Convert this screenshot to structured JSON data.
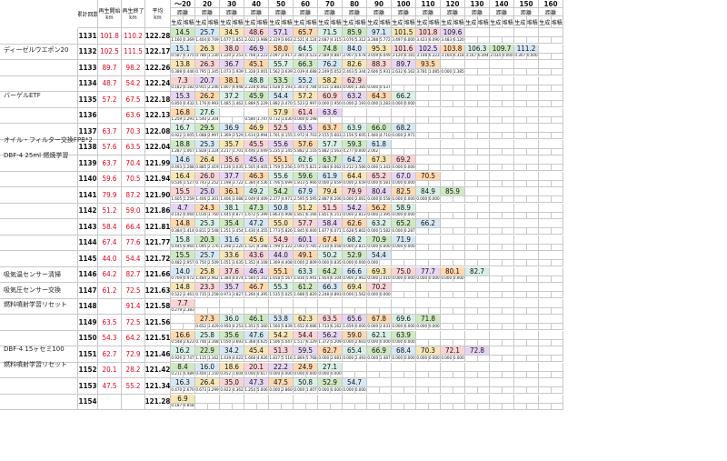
{
  "header": {
    "col_labels": [
      "累計回数",
      "再生開始",
      "再生終了",
      "平均"
    ],
    "col_units": [
      "",
      "km",
      "km",
      "km"
    ],
    "bands": [
      "〜20",
      "20",
      "30",
      "40",
      "50",
      "60",
      "70",
      "80",
      "90",
      "100",
      "110",
      "120",
      "130",
      "140",
      "150",
      "160"
    ],
    "band_sublabel": "距離",
    "sub_gen": "生成",
    "sub_acc": "堆積"
  },
  "notes": [
    {
      "row": 1,
      "text": "ディーゼルウエポン20"
    },
    {
      "row": 4,
      "text": "バーゲルETF"
    },
    {
      "row": 7,
      "text": "オイル・フィルター交換FPB*2"
    },
    {
      "row": 8,
      "text": "DBF-4  25ml 燃焼学習"
    },
    {
      "row": 16,
      "text": "吸気温センサー清掃"
    },
    {
      "row": 17,
      "text": "吸気圧センサー交換"
    },
    {
      "row": 18,
      "text": "燃料噴射学習リセット"
    },
    {
      "row": 21,
      "text": "DBF-4  15ヶセミ100"
    },
    {
      "row": 22,
      "text": "燃料噴射学習リセット"
    }
  ],
  "rows": [
    {
      "id": "1131",
      "s": "101.8",
      "e": "110.2",
      "avg": "122.28",
      "top": [
        "14.5",
        "25.7",
        "34.5",
        "48.6",
        "57.1",
        "65.7",
        "71.5",
        "85.9",
        "97.1",
        "101.5",
        "101.8",
        "109.6"
      ],
      "bot": [
        "1.160",
        "0.369",
        "1.404",
        "0.749",
        "1.677",
        "1.851",
        "2.022",
        "3.988",
        "2.319",
        "3.663",
        "2.521",
        "4.124",
        "2.687",
        "4.315",
        "3.076",
        "5.312",
        "3.288",
        "5.772",
        "3.497",
        "6.000",
        "3.423",
        "6.090",
        "3.483",
        "6.120"
      ]
    },
    {
      "id": "1132",
      "s": "102.5",
      "e": "111.5",
      "avg": "122.17",
      "top": [
        "15.1",
        "26.3",
        "38.0",
        "46.9",
        "58.0",
        "64.5",
        "74.8",
        "84.0",
        "95.3",
        "101.6",
        "102.5",
        "103.8",
        "106.3",
        "109.7",
        "111.2"
      ],
      "bot": [
        "0.587",
        "0.375",
        "0.786",
        "1.130",
        "1.220",
        "2.253",
        "1.768",
        "3.223",
        "2.097",
        "3.917",
        "2.385",
        "4.523",
        "2.589",
        "4.887",
        "2.907",
        "5.678",
        "3.059",
        "6.049",
        "3.120",
        "6.165",
        "3.148",
        "6.223",
        "3.164",
        "6.318",
        "3.167",
        "6.394",
        "2.034",
        "0.000",
        "0.307",
        "0.000"
      ]
    },
    {
      "id": "1133",
      "s": "89.7",
      "e": "98.2",
      "avg": "122.26",
      "top": [
        "13.8",
        "26.3",
        "36.7",
        "45.1",
        "55.7",
        "66.3",
        "76.2",
        "82.6",
        "88.3",
        "89.7",
        "93.5"
      ],
      "bot": [
        "0.388",
        "0.446",
        "0.795",
        "1.345",
        "1.073",
        "1.939",
        "1.328",
        "3.001",
        "1.562",
        "3.639",
        "2.039",
        "4.688",
        "2.249",
        "5.052",
        "2.403",
        "5.344",
        "2.606",
        "5.931",
        "2.632",
        "6.162",
        "3.781",
        "1.085",
        "0.000",
        "1.385"
      ]
    },
    {
      "id": "1134",
      "s": "48.7",
      "e": "54.2",
      "avg": "122.24",
      "top": [
        "7.3",
        "20.7",
        "38.1",
        "48.8",
        "53.5",
        "55.2",
        "58.2",
        "62.9"
      ],
      "bot": [
        "0.182",
        "0.182",
        "0.955",
        "2.246",
        "1.807",
        "4.948",
        "2.228",
        "6.062",
        "1.628",
        "5.193",
        "1.303",
        "4.784",
        "0.511",
        "3.883",
        "0.000",
        "1.385",
        "0.000",
        "0.537"
      ]
    },
    {
      "id": "1135",
      "s": "57.2",
      "e": "67.5",
      "avg": "122.18",
      "top": [
        "15.3",
        "26.2",
        "37.2",
        "45.9",
        "54.4",
        "57.2",
        "60.9",
        "63.2",
        "64.3",
        "66.2"
      ],
      "bot": [
        "0.850",
        "0.432",
        "1.176",
        "0.993",
        "1.485",
        "1.462",
        "1.889",
        "5.229",
        "1.882",
        "3.470",
        "1.523",
        "2.997",
        "0.000",
        "1.950",
        "0.000",
        "2.193",
        "0.000",
        "1.283",
        "0.000",
        "0.000"
      ]
    },
    {
      "id": "1136",
      "s": "",
      "e": "63.6",
      "avg": "122.13",
      "top": [
        "16.8",
        "27.6",
        "",
        "",
        "57.9",
        "61.4",
        "63.6"
      ],
      "bot": [
        "1.259",
        "1.291",
        "1.540",
        "2.304",
        "",
        "",
        "0.580",
        "1.747",
        "0.732",
        "1.030",
        "0.000",
        "0.198"
      ]
    },
    {
      "id": "1137",
      "s": "63.7",
      "e": "70.3",
      "avg": "122.08",
      "top": [
        "16.7",
        "29.5",
        "36.9",
        "46.9",
        "52.5",
        "63.5",
        "63.7",
        "63.9",
        "66.0",
        "68.2"
      ],
      "bot": [
        "0.922",
        "1.005",
        "1.088",
        "2.997",
        "1.369",
        "3.529",
        "1.614",
        "3.994",
        "1.761",
        "4.155",
        "1.972",
        "4.703",
        "2.155",
        "5.603",
        "2.156",
        "5.605",
        "1.460",
        "4.710",
        "0.000",
        "2.971"
      ]
    },
    {
      "id": "1138",
      "s": "57.6",
      "e": "63.5",
      "avg": "122.04",
      "top": [
        "18.8",
        "25.3",
        "35.7",
        "45.5",
        "55.6",
        "57.6",
        "57.7",
        "59.3",
        "61.8"
      ],
      "bot": [
        "1.287",
        "1.067",
        "1.828",
        "1.324",
        "3.217",
        "1.701",
        "4.446",
        "2.049",
        "5.235",
        "2.145",
        "5.882",
        "2.116",
        "5.882",
        "1.563",
        "4.277",
        "0.000",
        "2.062"
      ]
    },
    {
      "id": "1139",
      "s": "63.7",
      "e": "70.4",
      "avg": "121.99",
      "top": [
        "14.6",
        "26.4",
        "35.6",
        "45.6",
        "55.1",
        "62.6",
        "63.7",
        "64.2",
        "67.3",
        "69.2"
      ],
      "bot": [
        "0.493",
        "1.288",
        "0.885",
        "2.419",
        "1.126",
        "3.035",
        "1.505",
        "4.405",
        "1.759",
        "5.256",
        "1.975",
        "5.821",
        "2.084",
        "6.062",
        "0.212",
        "3.566",
        "0.000",
        "1.343",
        "0.000",
        "0.000"
      ]
    },
    {
      "id": "1140",
      "s": "59.6",
      "e": "70.5",
      "avg": "121.94",
      "top": [
        "16.4",
        "26.0",
        "37.7",
        "46.3",
        "55.6",
        "59.6",
        "61.9",
        "64.4",
        "65.2",
        "67.0",
        "70.5"
      ],
      "bot": [
        "0.536",
        "1.527",
        "0.743",
        "2.252",
        "1.198",
        "3.722",
        "1.384",
        "4.536",
        "1.706",
        "5.699",
        "1.813",
        "5.966",
        "0.000",
        "2.659",
        "0.000",
        "2.659",
        "0.000",
        "0.581",
        "0.000",
        "0.000"
      ]
    },
    {
      "id": "1141",
      "s": "79.9",
      "e": "87.2",
      "avg": "121.90",
      "top": [
        "15.5",
        "25.0",
        "36.1",
        "49.2",
        "54.2",
        "67.9",
        "79.4",
        "79.9",
        "80.4",
        "82.5",
        "84.9",
        "85.9"
      ],
      "bot": [
        "1.605",
        "1.259",
        "1.406",
        "2.301",
        "1.406",
        "3.088",
        "2.049",
        "4.409",
        "2.377",
        "4.971",
        "2.595",
        "5.595",
        "2.887",
        "6.206",
        "0.000",
        "2.061",
        "0.000",
        "0.558",
        "0.000",
        "0.000",
        "0.000",
        "0.000"
      ]
    },
    {
      "id": "1142",
      "s": "51.2",
      "e": "59.0",
      "avg": "121.86",
      "top": [
        "4.7",
        "24.3",
        "38.1",
        "47.3",
        "50.8",
        "51.2",
        "51.5",
        "54.2",
        "56.2",
        "58.9"
      ],
      "bot": [
        "0.142",
        "0.060",
        "1.016",
        "3.760",
        "1.445",
        "4.877",
        "1.672",
        "5.399",
        "1.863",
        "5.908",
        "1.851",
        "6.166",
        "1.851",
        "6.151",
        "0.000",
        "2.813",
        "0.000",
        "1.395",
        "0.000",
        "0.000"
      ]
    },
    {
      "id": "1143",
      "s": "58.4",
      "e": "66.4",
      "avg": "121.81",
      "top": [
        "14.8",
        "25.3",
        "35.4",
        "47.2",
        "55.0",
        "57.7",
        "58.4",
        "62.6",
        "63.2",
        "65.2",
        "66.2"
      ],
      "bot": [
        "0.384",
        "1.414",
        "0.811",
        "2.548",
        "1.251",
        "3.454",
        "1.430",
        "4.355",
        "1.773",
        "5.826",
        "1.845",
        "6.000",
        "1.877",
        "6.071",
        "1.628",
        "5.802",
        "0.000",
        "1.582",
        "0.000",
        "0.287"
      ]
    },
    {
      "id": "1144",
      "s": "67.4",
      "e": "77.6",
      "avg": "121.77",
      "top": [
        "15.8",
        "20.3",
        "31.6",
        "45.6",
        "54.9",
        "60.1",
        "67.4",
        "68.2",
        "70.9",
        "71.9"
      ],
      "bot": [
        "0.445",
        "0.960",
        "1.095",
        "2.176",
        "1.298",
        "3.220",
        "1.521",
        "4.398",
        "1.799",
        "5.322",
        "2.093",
        "5.785",
        "2.110",
        "6.058",
        "0.000",
        "2.815",
        "0.000",
        "0.000",
        "0.000",
        "0.000"
      ]
    },
    {
      "id": "1145",
      "s": "44.0",
      "e": "54.4",
      "avg": "121.72",
      "top": [
        "15.5",
        "25.7",
        "33.6",
        "43.6",
        "44.0",
        "49.1",
        "50.2",
        "52.9",
        "54.4"
      ],
      "bot": [
        "0.482",
        "2.957",
        "0.750",
        "2.509",
        "1.051",
        "3.635",
        "1.352",
        "4.108",
        "1.369",
        "4.408",
        "0.000",
        "2.809",
        "0.000",
        "0.835",
        "0.000",
        "0.000",
        "0.000"
      ]
    },
    {
      "id": "1146",
      "s": "64.2",
      "e": "82.7",
      "avg": "121.66",
      "top": [
        "14.0",
        "25.8",
        "37.6",
        "46.4",
        "55.1",
        "63.3",
        "64.2",
        "66.6",
        "69.3",
        "75.0",
        "77.7",
        "80.1",
        "82.7"
      ],
      "bot": [
        "0.769",
        "0.972",
        "1.484",
        "2.962",
        "1.384",
        "4.074",
        "1.584",
        "5.102",
        "1.658",
        "5.567",
        "1.816",
        "5.941",
        "1.954",
        "6.104",
        "0.900",
        "2.963",
        "0.000",
        "1.010",
        "0.000",
        "0.000",
        "0.000",
        "0.000",
        "0.000",
        "0.000"
      ]
    },
    {
      "id": "1147",
      "s": "61.2",
      "e": "72.5",
      "avg": "121.63",
      "top": [
        "14.8",
        "23.3",
        "35.7",
        "46.7",
        "55.3",
        "61.2",
        "66.3",
        "69.4",
        "70.2"
      ],
      "bot": [
        "0.522",
        "2.461",
        "0.735",
        "3.258",
        "0.973",
        "3.827",
        "1.260",
        "4.395",
        "1.535",
        "5.025",
        "1.688",
        "5.820",
        "2.248",
        "4.893",
        "0.000",
        "1.562",
        "0.000",
        "0.000"
      ]
    },
    {
      "id": "1148",
      "s": "",
      "e": "91.4",
      "avg": "121.58",
      "top": [
        "7.7"
      ],
      "bot": [
        "0.279",
        "2.383"
      ]
    },
    {
      "id": "1149",
      "s": "63.5",
      "e": "72.5",
      "avg": "121.56",
      "top": [
        "",
        "27.3",
        "36.0",
        "46.1",
        "53.8",
        "62.3",
        "63.5",
        "65.6",
        "67.8",
        "69.6",
        "71.8"
      ],
      "bot": [
        "",
        "",
        "0.652",
        "3.429",
        "0.950",
        "4.253",
        "1.353",
        "5.360",
        "1.560",
        "5.839",
        "1.652",
        "6.086",
        "1.733",
        "6.162",
        "1.659",
        "0.000",
        "0.000",
        "2.031",
        "0.000",
        "0.000",
        "0.000",
        "0.000"
      ]
    },
    {
      "id": "1150",
      "s": "54.3",
      "e": "64.2",
      "avg": "121.51",
      "top": [
        "16.6",
        "25.8",
        "35.6",
        "47.6",
        "54.2",
        "54.4",
        "56.2",
        "59.0",
        "62.1",
        "63.9"
      ],
      "bot": [
        "0.548",
        "2.623",
        "0.746",
        "3.168",
        "1.050",
        "3.693",
        "1.368",
        "4.625",
        "1.506",
        "5.047",
        "1.517",
        "6.129",
        "1.372",
        "5.209",
        "0.000",
        "2.603",
        "0.000",
        "0.000",
        "0.000",
        "0.000"
      ]
    },
    {
      "id": "1151",
      "s": "62.7",
      "e": "72.9",
      "avg": "121.46",
      "top": [
        "16.2",
        "22.9",
        "34.2",
        "45.4",
        "51.3",
        "59.5",
        "62.7",
        "65.4",
        "66.9",
        "68.4",
        "70.3",
        "72.1",
        "72.8"
      ],
      "bot": [
        "0.926",
        "2.747",
        "1.115",
        "3.162",
        "1.439",
        "4.022",
        "1.668",
        "4.926",
        "1.837",
        "5.516",
        "1.869",
        "5.768",
        "0.000",
        "2.081",
        "0.000",
        "2.493",
        "0.000",
        "1.487",
        "0.000",
        "0.000",
        "0.000",
        "0.000",
        "0.000",
        "0.000"
      ]
    },
    {
      "id": "1152",
      "s": "20.1",
      "e": "28.2",
      "avg": "121.42",
      "top": [
        "8.4",
        "16.0",
        "18.6",
        "20.1",
        "22.2",
        "24.9",
        "27.1"
      ],
      "bot": [
        "0.211",
        "0.489",
        "0.400",
        "1.150",
        "0.452",
        "1.604",
        "0.000",
        "0.617",
        "0.000",
        "0.000",
        "0.000",
        "0.000",
        "0.000",
        "0.000"
      ]
    },
    {
      "id": "1153",
      "s": "47.5",
      "e": "55.2",
      "avg": "121.34",
      "top": [
        "16.3",
        "26.4",
        "35.0",
        "47.3",
        "47.5",
        "50.8",
        "52.9",
        "54.7"
      ],
      "bot": [
        "0.470",
        "2.670",
        "0.673",
        "3.299",
        "0.922",
        "4.362",
        "1.254",
        "5.006",
        "0.000",
        "2.860",
        "0.000",
        "1.407",
        "0.000",
        "0.000",
        "0.000",
        "0.000"
      ]
    },
    {
      "id": "1154",
      "s": "",
      "e": "",
      "avg": "121.28",
      "top": [
        "6.9"
      ],
      "bot": [
        "0.187",
        "0.858"
      ]
    }
  ],
  "colors": {
    "band_fill": [
      "#cfe9c2",
      "#d6e8f6",
      "#f7e6b7",
      "#f9d3d6",
      "#e6d6f4",
      "#ffd8b0",
      "#d8f0e6"
    ],
    "red_text": "#e0001b",
    "blue_text": "#1a4bd0"
  }
}
